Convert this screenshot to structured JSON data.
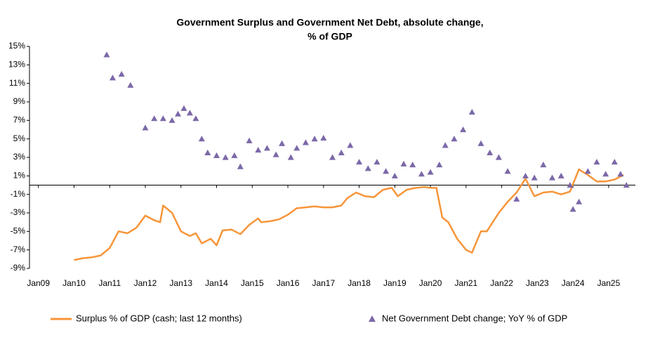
{
  "chart_data": {
    "type": "line",
    "title": [
      "Government Surplus and Government Net Debt, absolute change,",
      "% of GDP"
    ],
    "xlim": [
      "2008-10",
      "2025-10"
    ],
    "xticks": [
      {
        "value": "2009-01",
        "label": "Jan09"
      },
      {
        "value": "2010-01",
        "label": "Jan10"
      },
      {
        "value": "2011-01",
        "label": "Jan11"
      },
      {
        "value": "2012-01",
        "label": "Jan12"
      },
      {
        "value": "2013-01",
        "label": "Jan13"
      },
      {
        "value": "2014-01",
        "label": "Jan14"
      },
      {
        "value": "2015-01",
        "label": "Jan15"
      },
      {
        "value": "2016-01",
        "label": "Jan16"
      },
      {
        "value": "2017-01",
        "label": "Jan17"
      },
      {
        "value": "2018-01",
        "label": "Jan18"
      },
      {
        "value": "2019-01",
        "label": "Jan19"
      },
      {
        "value": "2020-01",
        "label": "Jan20"
      },
      {
        "value": "2021-01",
        "label": "Jan21"
      },
      {
        "value": "2022-01",
        "label": "Jan22"
      },
      {
        "value": "2023-01",
        "label": "Jan23"
      },
      {
        "value": "2024-01",
        "label": "Jan24"
      },
      {
        "value": "2025-01",
        "label": "Jan25"
      }
    ],
    "ylim": [
      -9,
      15
    ],
    "yticks": [
      {
        "value": 15,
        "label": "15%"
      },
      {
        "value": 13,
        "label": "13%"
      },
      {
        "value": 11,
        "label": "11%"
      },
      {
        "value": 9,
        "label": "9%"
      },
      {
        "value": 7,
        "label": "7%"
      },
      {
        "value": 5,
        "label": "5%"
      },
      {
        "value": 3,
        "label": "3%"
      },
      {
        "value": 1,
        "label": "1%"
      },
      {
        "value": -1,
        "label": "-1%"
      },
      {
        "value": -3,
        "label": "-3%"
      },
      {
        "value": -5,
        "label": "-5%"
      },
      {
        "value": -7,
        "label": "-7%"
      },
      {
        "value": -9,
        "label": "-9%"
      }
    ],
    "series": [
      {
        "name": "Surplus  % of GDP (cash; last 12 months)",
        "color": "#f7953a",
        "style": "line",
        "x": [
          "2010-01",
          "2010-04",
          "2010-07",
          "2010-10",
          "2011-01",
          "2011-04",
          "2011-07",
          "2011-10",
          "2012-01",
          "2012-04",
          "2012-06",
          "2012-07",
          "2012-10",
          "2013-01",
          "2013-04",
          "2013-06",
          "2013-08",
          "2013-11",
          "2014-01",
          "2014-03",
          "2014-06",
          "2014-09",
          "2014-12",
          "2015-03",
          "2015-04",
          "2015-07",
          "2015-10",
          "2016-01",
          "2016-04",
          "2016-07",
          "2016-10",
          "2017-01",
          "2017-04",
          "2017-07",
          "2017-09",
          "2017-12",
          "2018-03",
          "2018-06",
          "2018-09",
          "2018-12",
          "2019-02",
          "2019-05",
          "2019-08",
          "2019-11",
          "2020-01",
          "2020-03",
          "2020-05",
          "2020-07",
          "2020-10",
          "2021-01",
          "2021-03",
          "2021-06",
          "2021-08",
          "2021-12",
          "2022-03",
          "2022-06",
          "2022-09",
          "2022-12",
          "2023-03",
          "2023-06",
          "2023-09",
          "2023-12",
          "2024-03",
          "2024-06",
          "2024-09",
          "2024-12",
          "2025-03",
          "2025-06"
        ],
        "values": [
          -8.1,
          -7.9,
          -7.8,
          -7.6,
          -6.8,
          -5.0,
          -5.2,
          -4.6,
          -3.3,
          -3.8,
          -4.0,
          -2.2,
          -3.0,
          -5.0,
          -5.5,
          -5.2,
          -6.3,
          -5.8,
          -6.5,
          -4.9,
          -4.8,
          -5.3,
          -4.3,
          -3.6,
          -4.0,
          -3.9,
          -3.7,
          -3.2,
          -2.5,
          -2.4,
          -2.3,
          -2.4,
          -2.4,
          -2.2,
          -1.4,
          -0.8,
          -1.2,
          -1.3,
          -0.5,
          -0.3,
          -1.2,
          -0.5,
          -0.3,
          -0.2,
          -0.3,
          -0.3,
          -3.5,
          -4.0,
          -5.8,
          -7.0,
          -7.3,
          -5.0,
          -5.0,
          -3.0,
          -1.8,
          -0.8,
          0.7,
          -1.2,
          -0.8,
          -0.7,
          -1.0,
          -0.7,
          1.7,
          1.1,
          0.4,
          0.4,
          0.6,
          1.1
        ]
      },
      {
        "name": "Net Government Debt change; YoY % of GDP",
        "color": "#7b68a8",
        "style": "triangle",
        "x": [
          "2010-12",
          "2011-02",
          "2011-05",
          "2011-08",
          "2012-01",
          "2012-04",
          "2012-07",
          "2012-10",
          "2012-12",
          "2013-02",
          "2013-04",
          "2013-06",
          "2013-08",
          "2013-10",
          "2014-01",
          "2014-04",
          "2014-07",
          "2014-09",
          "2014-12",
          "2015-03",
          "2015-06",
          "2015-09",
          "2015-11",
          "2016-02",
          "2016-04",
          "2016-07",
          "2016-10",
          "2017-01",
          "2017-04",
          "2017-07",
          "2017-10",
          "2018-01",
          "2018-04",
          "2018-07",
          "2018-10",
          "2019-01",
          "2019-04",
          "2019-07",
          "2019-10",
          "2020-01",
          "2020-04",
          "2020-06",
          "2020-09",
          "2020-12",
          "2021-03",
          "2021-06",
          "2021-09",
          "2021-12",
          "2022-03",
          "2022-06",
          "2022-09",
          "2022-12",
          "2023-03",
          "2023-06",
          "2023-09",
          "2023-12",
          "2024-01",
          "2024-03",
          "2024-06",
          "2024-09",
          "2024-12",
          "2025-03",
          "2025-05",
          "2025-07"
        ],
        "values": [
          14.1,
          11.6,
          12.0,
          10.8,
          6.2,
          7.2,
          7.2,
          7.0,
          7.7,
          8.3,
          7.8,
          7.2,
          5.0,
          3.5,
          3.2,
          3.0,
          3.2,
          2.0,
          4.8,
          3.8,
          4.0,
          3.3,
          4.5,
          3.0,
          4.0,
          4.6,
          5.0,
          5.1,
          3.0,
          3.5,
          4.3,
          2.5,
          1.8,
          2.5,
          1.5,
          1.0,
          2.3,
          2.2,
          1.2,
          1.4,
          2.2,
          4.3,
          5.0,
          6.0,
          7.9,
          4.5,
          3.5,
          3.0,
          1.5,
          -1.5,
          1.0,
          0.8,
          2.2,
          0.8,
          1.0,
          0.0,
          -2.6,
          -1.8,
          1.5,
          2.5,
          1.2,
          2.5,
          1.2,
          0.0
        ]
      }
    ]
  }
}
